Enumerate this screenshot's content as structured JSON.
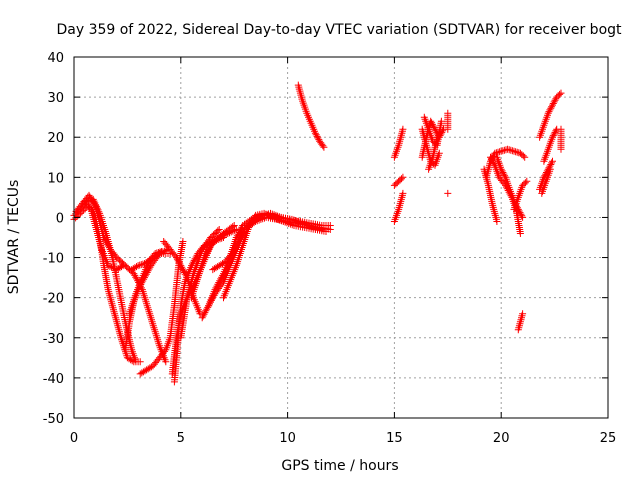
{
  "chart_data": {
    "type": "scatter",
    "title": "Day 359 of 2022, Sidereal Day-to-day VTEC variation (SDTVAR) for receiver bogt",
    "xlabel": "GPS time / hours",
    "ylabel": "SDTVAR / TECUs",
    "xlim": [
      0,
      25
    ],
    "ylim": [
      -50,
      40
    ],
    "xticks": [
      0,
      5,
      10,
      15,
      20,
      25
    ],
    "yticks": [
      -50,
      -40,
      -30,
      -20,
      -10,
      0,
      10,
      20,
      30,
      40
    ],
    "grid": true,
    "marker": "+",
    "color": "#ff0000",
    "tracks": [
      [
        [
          0.0,
          0.5
        ],
        [
          0.3,
          2.0
        ],
        [
          0.6,
          4.0
        ],
        [
          0.9,
          4.5
        ],
        [
          1.2,
          1.0
        ],
        [
          1.5,
          -4.0
        ],
        [
          1.8,
          -10.0
        ],
        [
          2.1,
          -18.0
        ],
        [
          2.4,
          -26.0
        ],
        [
          2.7,
          -33.0
        ],
        [
          2.9,
          -36.0
        ],
        [
          3.1,
          -36.0
        ]
      ],
      [
        [
          0.0,
          -0.5
        ],
        [
          0.3,
          1.0
        ],
        [
          0.6,
          2.5
        ],
        [
          0.8,
          2.5
        ],
        [
          1.0,
          0.0
        ],
        [
          1.2,
          -5.0
        ],
        [
          1.4,
          -12.0
        ],
        [
          1.6,
          -18.0
        ],
        [
          1.8,
          -22.0
        ],
        [
          2.0,
          -26.0
        ],
        [
          2.2,
          -30.0
        ],
        [
          2.5,
          -35.0
        ],
        [
          2.8,
          -36.0
        ]
      ],
      [
        [
          0.1,
          1.5
        ],
        [
          0.4,
          3.5
        ],
        [
          0.7,
          5.5
        ],
        [
          1.0,
          3.0
        ],
        [
          1.2,
          -1.0
        ],
        [
          1.4,
          -5.0
        ],
        [
          1.7,
          -8.0
        ],
        [
          2.0,
          -10.0
        ],
        [
          2.4,
          -12.0
        ],
        [
          2.8,
          -14.0
        ],
        [
          3.2,
          -18.0
        ],
        [
          3.6,
          -25.0
        ],
        [
          4.0,
          -32.0
        ],
        [
          4.3,
          -36.0
        ]
      ],
      [
        [
          0.5,
          4.0
        ],
        [
          0.8,
          2.0
        ],
        [
          1.0,
          -2.0
        ],
        [
          1.3,
          -8.0
        ],
        [
          1.6,
          -12.0
        ],
        [
          2.0,
          -13.0
        ],
        [
          2.3,
          -12.0
        ]
      ],
      [
        [
          2.4,
          -33.0
        ],
        [
          2.6,
          -26.0
        ],
        [
          2.8,
          -21.0
        ],
        [
          3.0,
          -18.0
        ],
        [
          3.3,
          -15.0
        ],
        [
          3.6,
          -12.0
        ],
        [
          4.0,
          -9.0
        ],
        [
          4.4,
          -8.0
        ]
      ],
      [
        [
          2.7,
          -13.0
        ],
        [
          3.0,
          -12.0
        ],
        [
          3.3,
          -11.5
        ],
        [
          3.6,
          -10.5
        ],
        [
          4.0,
          -9.0
        ],
        [
          4.5,
          -9.0
        ]
      ],
      [
        [
          2.6,
          -24.0
        ],
        [
          2.9,
          -19.0
        ],
        [
          3.2,
          -15.0
        ],
        [
          3.5,
          -11.0
        ],
        [
          3.8,
          -9.0
        ],
        [
          4.1,
          -8.5
        ]
      ],
      [
        [
          4.2,
          -6.0
        ],
        [
          4.5,
          -8.0
        ],
        [
          4.8,
          -10.0
        ],
        [
          5.0,
          -12.0
        ],
        [
          5.3,
          -15.0
        ],
        [
          5.6,
          -20.0
        ],
        [
          5.9,
          -24.0
        ]
      ],
      [
        [
          3.1,
          -39.0
        ],
        [
          3.4,
          -38.0
        ],
        [
          3.7,
          -37.0
        ],
        [
          4.0,
          -35.0
        ],
        [
          4.3,
          -33.0
        ],
        [
          4.5,
          -30.0
        ],
        [
          4.7,
          -22.0
        ],
        [
          4.9,
          -12.0
        ],
        [
          5.1,
          -6.0
        ]
      ],
      [
        [
          4.7,
          -41.0
        ],
        [
          4.8,
          -35.0
        ],
        [
          4.9,
          -28.0
        ],
        [
          5.0,
          -22.0
        ],
        [
          5.2,
          -16.0
        ],
        [
          5.5,
          -12.0
        ],
        [
          5.8,
          -9.0
        ],
        [
          6.1,
          -7.0
        ],
        [
          6.5,
          -6.0
        ],
        [
          7.0,
          -5.0
        ]
      ],
      [
        [
          4.6,
          -39.0
        ],
        [
          4.8,
          -30.0
        ],
        [
          5.0,
          -24.0
        ],
        [
          5.3,
          -20.0
        ],
        [
          5.6,
          -17.0
        ],
        [
          6.0,
          -12.0
        ],
        [
          6.4,
          -7.0
        ],
        [
          6.8,
          -5.0
        ],
        [
          7.2,
          -4.0
        ],
        [
          7.6,
          -3.0
        ]
      ],
      [
        [
          5.0,
          -30.0
        ],
        [
          5.3,
          -20.0
        ],
        [
          5.6,
          -14.0
        ],
        [
          6.0,
          -8.0
        ],
        [
          6.4,
          -5.0
        ],
        [
          6.8,
          -3.0
        ]
      ],
      [
        [
          5.5,
          -20.0
        ],
        [
          5.8,
          -15.0
        ],
        [
          6.1,
          -10.0
        ],
        [
          6.5,
          -6.0
        ],
        [
          7.0,
          -4.0
        ],
        [
          7.5,
          -2.0
        ]
      ],
      [
        [
          6.0,
          -25.0
        ],
        [
          6.3,
          -22.0
        ],
        [
          6.6,
          -19.0
        ],
        [
          7.0,
          -16.0
        ],
        [
          7.3,
          -12.0
        ],
        [
          7.7,
          -7.0
        ],
        [
          8.0,
          -3.0
        ],
        [
          8.5,
          -1.0
        ],
        [
          9.0,
          0.0
        ],
        [
          9.5,
          -0.5
        ],
        [
          10.0,
          -1.0
        ],
        [
          10.5,
          -1.5
        ],
        [
          11.0,
          -2.0
        ],
        [
          11.5,
          -2.5
        ],
        [
          12.0,
          -3.0
        ]
      ],
      [
        [
          6.3,
          -22.0
        ],
        [
          6.6,
          -18.0
        ],
        [
          7.0,
          -14.0
        ],
        [
          7.3,
          -10.0
        ],
        [
          7.6,
          -5.0
        ],
        [
          7.9,
          -2.0
        ],
        [
          8.3,
          -0.5
        ],
        [
          8.7,
          0.5
        ],
        [
          9.1,
          0.5
        ],
        [
          9.6,
          0.0
        ],
        [
          10.1,
          -0.5
        ],
        [
          10.6,
          -1.0
        ],
        [
          11.1,
          -1.5
        ],
        [
          11.6,
          -2.0
        ],
        [
          12.0,
          -2.0
        ]
      ],
      [
        [
          6.5,
          -13.0
        ],
        [
          6.8,
          -12.0
        ],
        [
          7.1,
          -11.0
        ],
        [
          7.4,
          -9.0
        ],
        [
          7.7,
          -6.0
        ],
        [
          8.0,
          -3.0
        ],
        [
          8.4,
          -1.0
        ],
        [
          8.8,
          0.5
        ],
        [
          9.2,
          1.0
        ],
        [
          9.7,
          0.0
        ],
        [
          10.2,
          -0.5
        ],
        [
          10.7,
          -1.5
        ],
        [
          11.2,
          -2.5
        ],
        [
          11.6,
          -3.0
        ]
      ],
      [
        [
          7.0,
          -20.0
        ],
        [
          7.3,
          -16.0
        ],
        [
          7.6,
          -12.0
        ],
        [
          7.9,
          -7.0
        ],
        [
          8.2,
          -2.0
        ],
        [
          8.5,
          0.5
        ],
        [
          8.9,
          1.0
        ],
        [
          9.3,
          0.0
        ],
        [
          9.8,
          -1.0
        ],
        [
          10.3,
          -2.0
        ],
        [
          10.8,
          -2.5
        ],
        [
          11.3,
          -3.0
        ],
        [
          11.8,
          -3.5
        ]
      ],
      [
        [
          10.5,
          33.0
        ],
        [
          10.7,
          29.0
        ],
        [
          10.9,
          26.0
        ],
        [
          11.1,
          23.5
        ],
        [
          11.3,
          21.0
        ],
        [
          11.5,
          19.0
        ],
        [
          11.7,
          17.5
        ]
      ],
      [
        [
          15.0,
          15.0
        ],
        [
          15.2,
          18.0
        ],
        [
          15.4,
          22.0
        ]
      ],
      [
        [
          15.0,
          8.0
        ],
        [
          15.2,
          9.0
        ],
        [
          15.4,
          10.0
        ]
      ],
      [
        [
          15.0,
          -1.0
        ],
        [
          15.2,
          2.0
        ],
        [
          15.4,
          6.0
        ]
      ],
      [
        [
          16.3,
          15.0
        ],
        [
          16.5,
          20.0
        ],
        [
          16.7,
          24.0
        ],
        [
          16.9,
          22.0
        ],
        [
          17.1,
          20.0
        ],
        [
          17.3,
          22.0
        ]
      ],
      [
        [
          16.3,
          22.0
        ],
        [
          16.5,
          18.0
        ],
        [
          16.7,
          14.0
        ],
        [
          16.9,
          13.0
        ],
        [
          17.1,
          16.0
        ]
      ],
      [
        [
          16.4,
          25.0
        ],
        [
          16.6,
          22.0
        ],
        [
          16.8,
          19.0
        ],
        [
          17.0,
          18.0
        ],
        [
          17.2,
          24.0
        ]
      ],
      [
        [
          16.6,
          12.0
        ],
        [
          16.8,
          15.0
        ],
        [
          17.0,
          20.0
        ]
      ],
      [
        [
          17.5,
          22.0
        ],
        [
          17.5,
          24.0
        ],
        [
          17.5,
          26.0
        ]
      ],
      [
        [
          17.5,
          6.0
        ]
      ],
      [
        [
          19.3,
          10.0
        ],
        [
          19.5,
          14.0
        ],
        [
          19.7,
          16.0
        ],
        [
          20.0,
          16.5
        ],
        [
          20.3,
          17.0
        ],
        [
          20.6,
          16.5
        ],
        [
          20.9,
          16.0
        ],
        [
          21.1,
          15.0
        ]
      ],
      [
        [
          19.5,
          15.0
        ],
        [
          19.7,
          13.0
        ],
        [
          19.9,
          10.0
        ],
        [
          20.2,
          8.0
        ],
        [
          20.5,
          5.0
        ],
        [
          20.7,
          2.0
        ],
        [
          20.8,
          -1.0
        ],
        [
          20.9,
          -4.0
        ]
      ],
      [
        [
          19.2,
          12.0
        ],
        [
          19.4,
          8.0
        ],
        [
          19.6,
          3.0
        ],
        [
          19.8,
          -1.0
        ]
      ],
      [
        [
          19.8,
          15.0
        ],
        [
          20.0,
          12.0
        ],
        [
          20.2,
          10.0
        ],
        [
          20.4,
          7.0
        ],
        [
          20.6,
          4.0
        ],
        [
          20.8,
          2.0
        ],
        [
          21.0,
          0.0
        ]
      ],
      [
        [
          20.6,
          2.0
        ],
        [
          20.8,
          5.0
        ],
        [
          21.0,
          8.0
        ],
        [
          21.2,
          9.0
        ]
      ],
      [
        [
          20.8,
          -28.0
        ],
        [
          20.9,
          -26.0
        ],
        [
          21.0,
          -24.0
        ]
      ],
      [
        [
          21.8,
          7.0
        ],
        [
          22.0,
          10.0
        ],
        [
          22.2,
          12.0
        ],
        [
          22.4,
          14.0
        ]
      ],
      [
        [
          21.9,
          6.0
        ],
        [
          22.1,
          9.0
        ],
        [
          22.3,
          12.0
        ]
      ],
      [
        [
          22.0,
          14.0
        ],
        [
          22.2,
          17.0
        ],
        [
          22.4,
          20.0
        ],
        [
          22.6,
          22.0
        ]
      ],
      [
        [
          21.8,
          20.0
        ],
        [
          22.0,
          23.0
        ],
        [
          22.2,
          26.0
        ],
        [
          22.4,
          28.0
        ],
        [
          22.6,
          30.0
        ],
        [
          22.8,
          31.0
        ]
      ],
      [
        [
          22.8,
          22.0
        ],
        [
          22.8,
          17.0
        ]
      ]
    ]
  }
}
